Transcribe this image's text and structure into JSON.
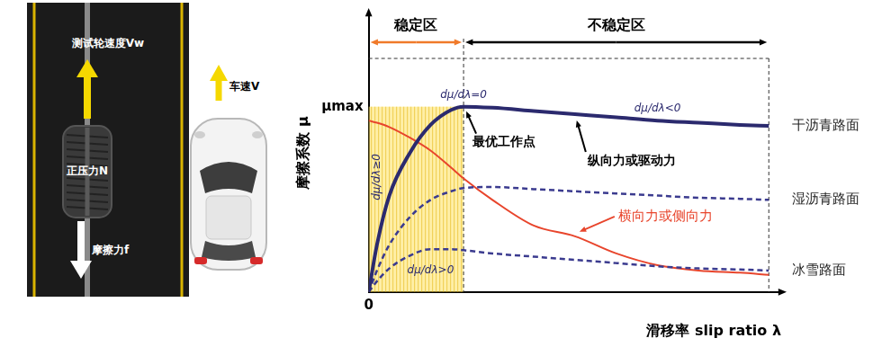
{
  "illustration": {
    "test_wheel_speed": "测试轮速度Vw",
    "normal_force": "正压力N",
    "friction_force": "摩擦力f",
    "vehicle_speed": "车速V"
  },
  "chart_data": {
    "type": "line",
    "y_label": "摩擦系数 μ",
    "x_label": "滑移率 slip ratio λ",
    "x": [
      0,
      0.02,
      0.05,
      0.1,
      0.15,
      0.2,
      0.23,
      0.3,
      0.4,
      0.5,
      0.6,
      0.7,
      0.8,
      0.9,
      0.97
    ],
    "series": [
      {
        "name": "干沥青路面",
        "color": "#2b2a6e",
        "line_style": "solid",
        "values": [
          0,
          0.22,
          0.45,
          0.65,
          0.78,
          0.85,
          0.865,
          0.86,
          0.845,
          0.83,
          0.815,
          0.8,
          0.79,
          0.78,
          0.775
        ]
      },
      {
        "name": "湿沥青路面",
        "color": "#3b3b8f",
        "line_style": "dashed",
        "values": [
          0,
          0.1,
          0.22,
          0.35,
          0.43,
          0.47,
          0.485,
          0.49,
          0.48,
          0.47,
          0.46,
          0.45,
          0.44,
          0.435,
          0.43
        ]
      },
      {
        "name": "冰雪路面",
        "color": "#3b3b8f",
        "line_style": "dashed",
        "values": [
          0,
          0.05,
          0.11,
          0.17,
          0.2,
          0.2,
          0.195,
          0.18,
          0.165,
          0.15,
          0.135,
          0.12,
          0.11,
          0.105,
          0.1
        ]
      },
      {
        "name": "横向力或侧向力",
        "color": "#e8452c",
        "line_style": "solid",
        "values": [
          0.8,
          0.79,
          0.77,
          0.72,
          0.66,
          0.58,
          0.53,
          0.43,
          0.31,
          0.26,
          0.18,
          0.125,
          0.1,
          0.09,
          0.08
        ]
      }
    ],
    "xlim": [
      0,
      1
    ],
    "ylim": [
      0,
      1.3
    ],
    "xticks": [
      0
    ],
    "yticks": [
      {
        "value": 0.865,
        "label": "μmax"
      }
    ],
    "grid": false,
    "regions": [
      {
        "label": "稳定区",
        "range": [
          0,
          0.23
        ],
        "color": "#f07a2a"
      },
      {
        "label": "不稳定区",
        "range": [
          0.23,
          0.97
        ],
        "color": "#000000"
      }
    ],
    "annotations": {
      "peak_slope": "dμ/dλ=0",
      "optimal_point": "最优工作点",
      "falling_slope": "dμ/dλ<0",
      "rising_slope_vertical": "dμ/dλ≥0",
      "rising_slope": "dμ/dλ>0",
      "longitudinal": "纵向力或驱动力"
    }
  }
}
